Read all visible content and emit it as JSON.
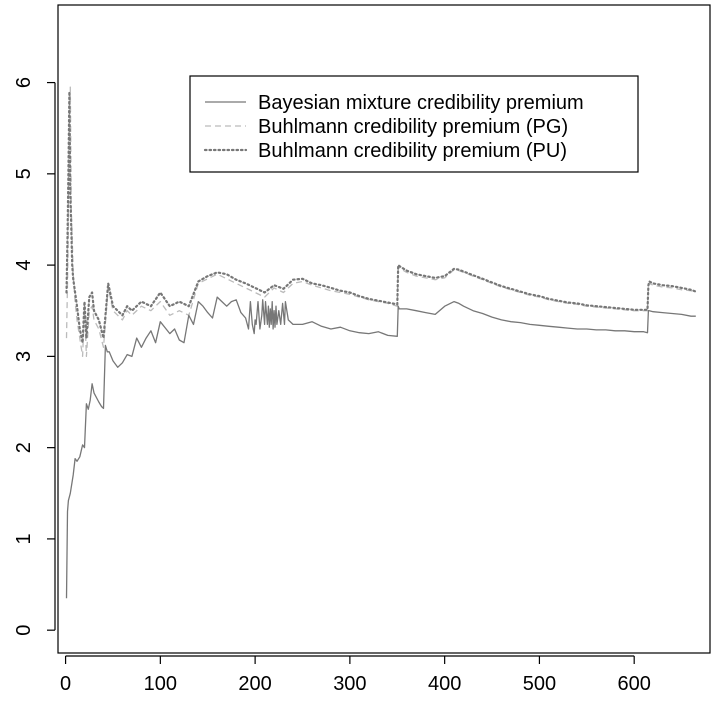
{
  "chart_data": {
    "type": "line",
    "title": "",
    "xlabel": "",
    "ylabel": "",
    "xlim": [
      -8,
      680
    ],
    "ylim": [
      -0.25,
      6.85
    ],
    "x_ticks": [
      0,
      100,
      200,
      300,
      400,
      500,
      600
    ],
    "x_tick_labels": [
      "0",
      "100",
      "200",
      "300",
      "400",
      "500",
      "600"
    ],
    "y_ticks": [
      0,
      1,
      2,
      3,
      4,
      5,
      6
    ],
    "y_tick_labels": [
      "0",
      "1",
      "2",
      "3",
      "4",
      "5",
      "6"
    ],
    "grid": false,
    "legend_position": "top-right",
    "series": [
      {
        "name": "Bayesian mixture credibility premium",
        "style": "solid",
        "color": "#777777",
        "x": [
          1,
          2,
          3,
          5,
          8,
          10,
          12,
          15,
          18,
          20,
          22,
          24,
          26,
          28,
          30,
          35,
          38,
          40,
          42,
          44,
          45,
          46,
          50,
          55,
          60,
          65,
          70,
          75,
          80,
          85,
          90,
          95,
          100,
          110,
          115,
          120,
          125,
          130,
          135,
          140,
          145,
          150,
          155,
          160,
          165,
          170,
          175,
          180,
          185,
          190,
          193,
          195,
          197,
          199,
          200,
          201,
          203,
          205,
          207,
          208,
          210,
          211,
          213,
          214,
          215,
          216,
          217,
          218,
          219,
          220,
          221,
          222,
          223,
          225,
          227,
          229,
          231,
          232,
          235,
          240,
          250,
          260,
          270,
          280,
          290,
          300,
          310,
          320,
          330,
          340,
          350,
          351,
          352,
          360,
          370,
          380,
          390,
          400,
          410,
          415,
          420,
          430,
          440,
          450,
          460,
          470,
          480,
          490,
          500,
          510,
          520,
          530,
          540,
          550,
          560,
          570,
          580,
          590,
          600,
          610,
          614,
          615,
          616,
          620,
          630,
          640,
          650,
          660,
          665
        ],
        "values": [
          0.35,
          1.3,
          1.42,
          1.5,
          1.7,
          1.88,
          1.85,
          1.9,
          2.03,
          2.0,
          2.48,
          2.42,
          2.52,
          2.7,
          2.6,
          2.5,
          2.45,
          2.43,
          3.12,
          3.05,
          3.05,
          3.05,
          2.95,
          2.88,
          2.93,
          3.02,
          3.0,
          3.2,
          3.1,
          3.2,
          3.28,
          3.15,
          3.38,
          3.25,
          3.3,
          3.18,
          3.15,
          3.45,
          3.35,
          3.6,
          3.55,
          3.48,
          3.42,
          3.65,
          3.6,
          3.55,
          3.6,
          3.62,
          3.48,
          3.42,
          3.3,
          3.6,
          3.35,
          3.25,
          3.4,
          3.35,
          3.6,
          3.3,
          3.45,
          3.62,
          3.35,
          3.6,
          3.35,
          3.55,
          3.32,
          3.52,
          3.35,
          3.6,
          3.3,
          3.5,
          3.32,
          3.55,
          3.35,
          3.5,
          3.35,
          3.58,
          3.35,
          3.6,
          3.4,
          3.35,
          3.35,
          3.38,
          3.33,
          3.3,
          3.32,
          3.28,
          3.26,
          3.25,
          3.27,
          3.23,
          3.22,
          3.55,
          3.52,
          3.52,
          3.5,
          3.48,
          3.46,
          3.55,
          3.6,
          3.58,
          3.55,
          3.5,
          3.47,
          3.43,
          3.4,
          3.38,
          3.37,
          3.35,
          3.34,
          3.33,
          3.32,
          3.31,
          3.3,
          3.3,
          3.29,
          3.29,
          3.28,
          3.28,
          3.27,
          3.27,
          3.26,
          3.5,
          3.5,
          3.49,
          3.48,
          3.47,
          3.46,
          3.44,
          3.44
        ]
      },
      {
        "name": "Buhlmann credibility premium (PG)",
        "style": "dashed",
        "color": "#bbbbbb",
        "x": [
          1,
          2,
          3,
          4,
          5,
          6,
          7,
          8,
          10,
          12,
          15,
          18,
          20,
          22,
          25,
          28,
          30,
          35,
          40,
          45,
          50,
          55,
          60,
          65,
          70,
          80,
          90,
          100,
          110,
          120,
          130,
          140,
          150,
          160,
          170,
          180,
          190,
          200,
          210,
          220,
          230,
          240,
          250,
          260,
          270,
          280,
          290,
          300,
          310,
          320,
          330,
          340,
          350,
          351,
          352,
          360,
          370,
          380,
          390,
          400,
          410,
          415,
          420,
          430,
          440,
          450,
          460,
          470,
          480,
          490,
          500,
          510,
          520,
          530,
          540,
          550,
          560,
          570,
          580,
          590,
          600,
          610,
          614,
          615,
          616,
          620,
          630,
          640,
          650,
          660,
          665
        ],
        "values": [
          3.2,
          3.8,
          4.4,
          5.6,
          5.95,
          4.6,
          4.3,
          3.9,
          3.6,
          3.4,
          3.2,
          3.0,
          3.55,
          3.0,
          3.5,
          3.55,
          3.4,
          3.3,
          3.1,
          3.75,
          3.5,
          3.45,
          3.4,
          3.5,
          3.45,
          3.55,
          3.5,
          3.6,
          3.45,
          3.5,
          3.45,
          3.8,
          3.85,
          3.9,
          3.85,
          3.8,
          3.75,
          3.7,
          3.65,
          3.75,
          3.7,
          3.8,
          3.82,
          3.78,
          3.75,
          3.72,
          3.7,
          3.68,
          3.65,
          3.62,
          3.6,
          3.58,
          3.55,
          3.98,
          3.97,
          3.92,
          3.88,
          3.86,
          3.84,
          3.86,
          3.95,
          3.94,
          3.92,
          3.88,
          3.84,
          3.8,
          3.76,
          3.73,
          3.7,
          3.67,
          3.65,
          3.62,
          3.6,
          3.58,
          3.57,
          3.55,
          3.54,
          3.53,
          3.52,
          3.51,
          3.5,
          3.5,
          3.5,
          3.76,
          3.8,
          3.78,
          3.76,
          3.75,
          3.73,
          3.72,
          3.7
        ]
      },
      {
        "name": "Buhlmann credibility premium (PU)",
        "style": "dotted",
        "color": "#777777",
        "x": [
          1,
          2,
          3,
          4,
          5,
          6,
          7,
          8,
          10,
          12,
          15,
          18,
          20,
          22,
          25,
          28,
          30,
          35,
          40,
          45,
          50,
          55,
          60,
          65,
          70,
          80,
          90,
          100,
          110,
          120,
          130,
          140,
          150,
          160,
          170,
          180,
          190,
          200,
          210,
          220,
          230,
          240,
          250,
          260,
          270,
          280,
          290,
          300,
          310,
          320,
          330,
          340,
          350,
          351,
          352,
          360,
          370,
          380,
          390,
          400,
          410,
          415,
          420,
          430,
          440,
          450,
          460,
          470,
          480,
          490,
          500,
          510,
          520,
          530,
          540,
          550,
          560,
          570,
          580,
          590,
          600,
          610,
          614,
          615,
          616,
          620,
          630,
          640,
          650,
          660,
          665
        ],
        "values": [
          3.7,
          4.3,
          5.0,
          5.9,
          4.8,
          4.4,
          4.0,
          3.85,
          3.7,
          3.55,
          3.3,
          3.15,
          3.6,
          3.2,
          3.65,
          3.7,
          3.5,
          3.4,
          3.2,
          3.8,
          3.55,
          3.5,
          3.45,
          3.55,
          3.5,
          3.6,
          3.55,
          3.7,
          3.55,
          3.6,
          3.55,
          3.82,
          3.88,
          3.92,
          3.9,
          3.84,
          3.8,
          3.75,
          3.7,
          3.78,
          3.74,
          3.84,
          3.85,
          3.8,
          3.78,
          3.75,
          3.72,
          3.7,
          3.66,
          3.63,
          3.61,
          3.59,
          3.57,
          4.0,
          3.99,
          3.94,
          3.9,
          3.88,
          3.86,
          3.88,
          3.96,
          3.95,
          3.93,
          3.89,
          3.85,
          3.81,
          3.77,
          3.74,
          3.71,
          3.68,
          3.66,
          3.63,
          3.61,
          3.59,
          3.58,
          3.56,
          3.55,
          3.54,
          3.53,
          3.52,
          3.51,
          3.51,
          3.51,
          3.78,
          3.82,
          3.8,
          3.78,
          3.77,
          3.75,
          3.73,
          3.71
        ]
      }
    ]
  }
}
